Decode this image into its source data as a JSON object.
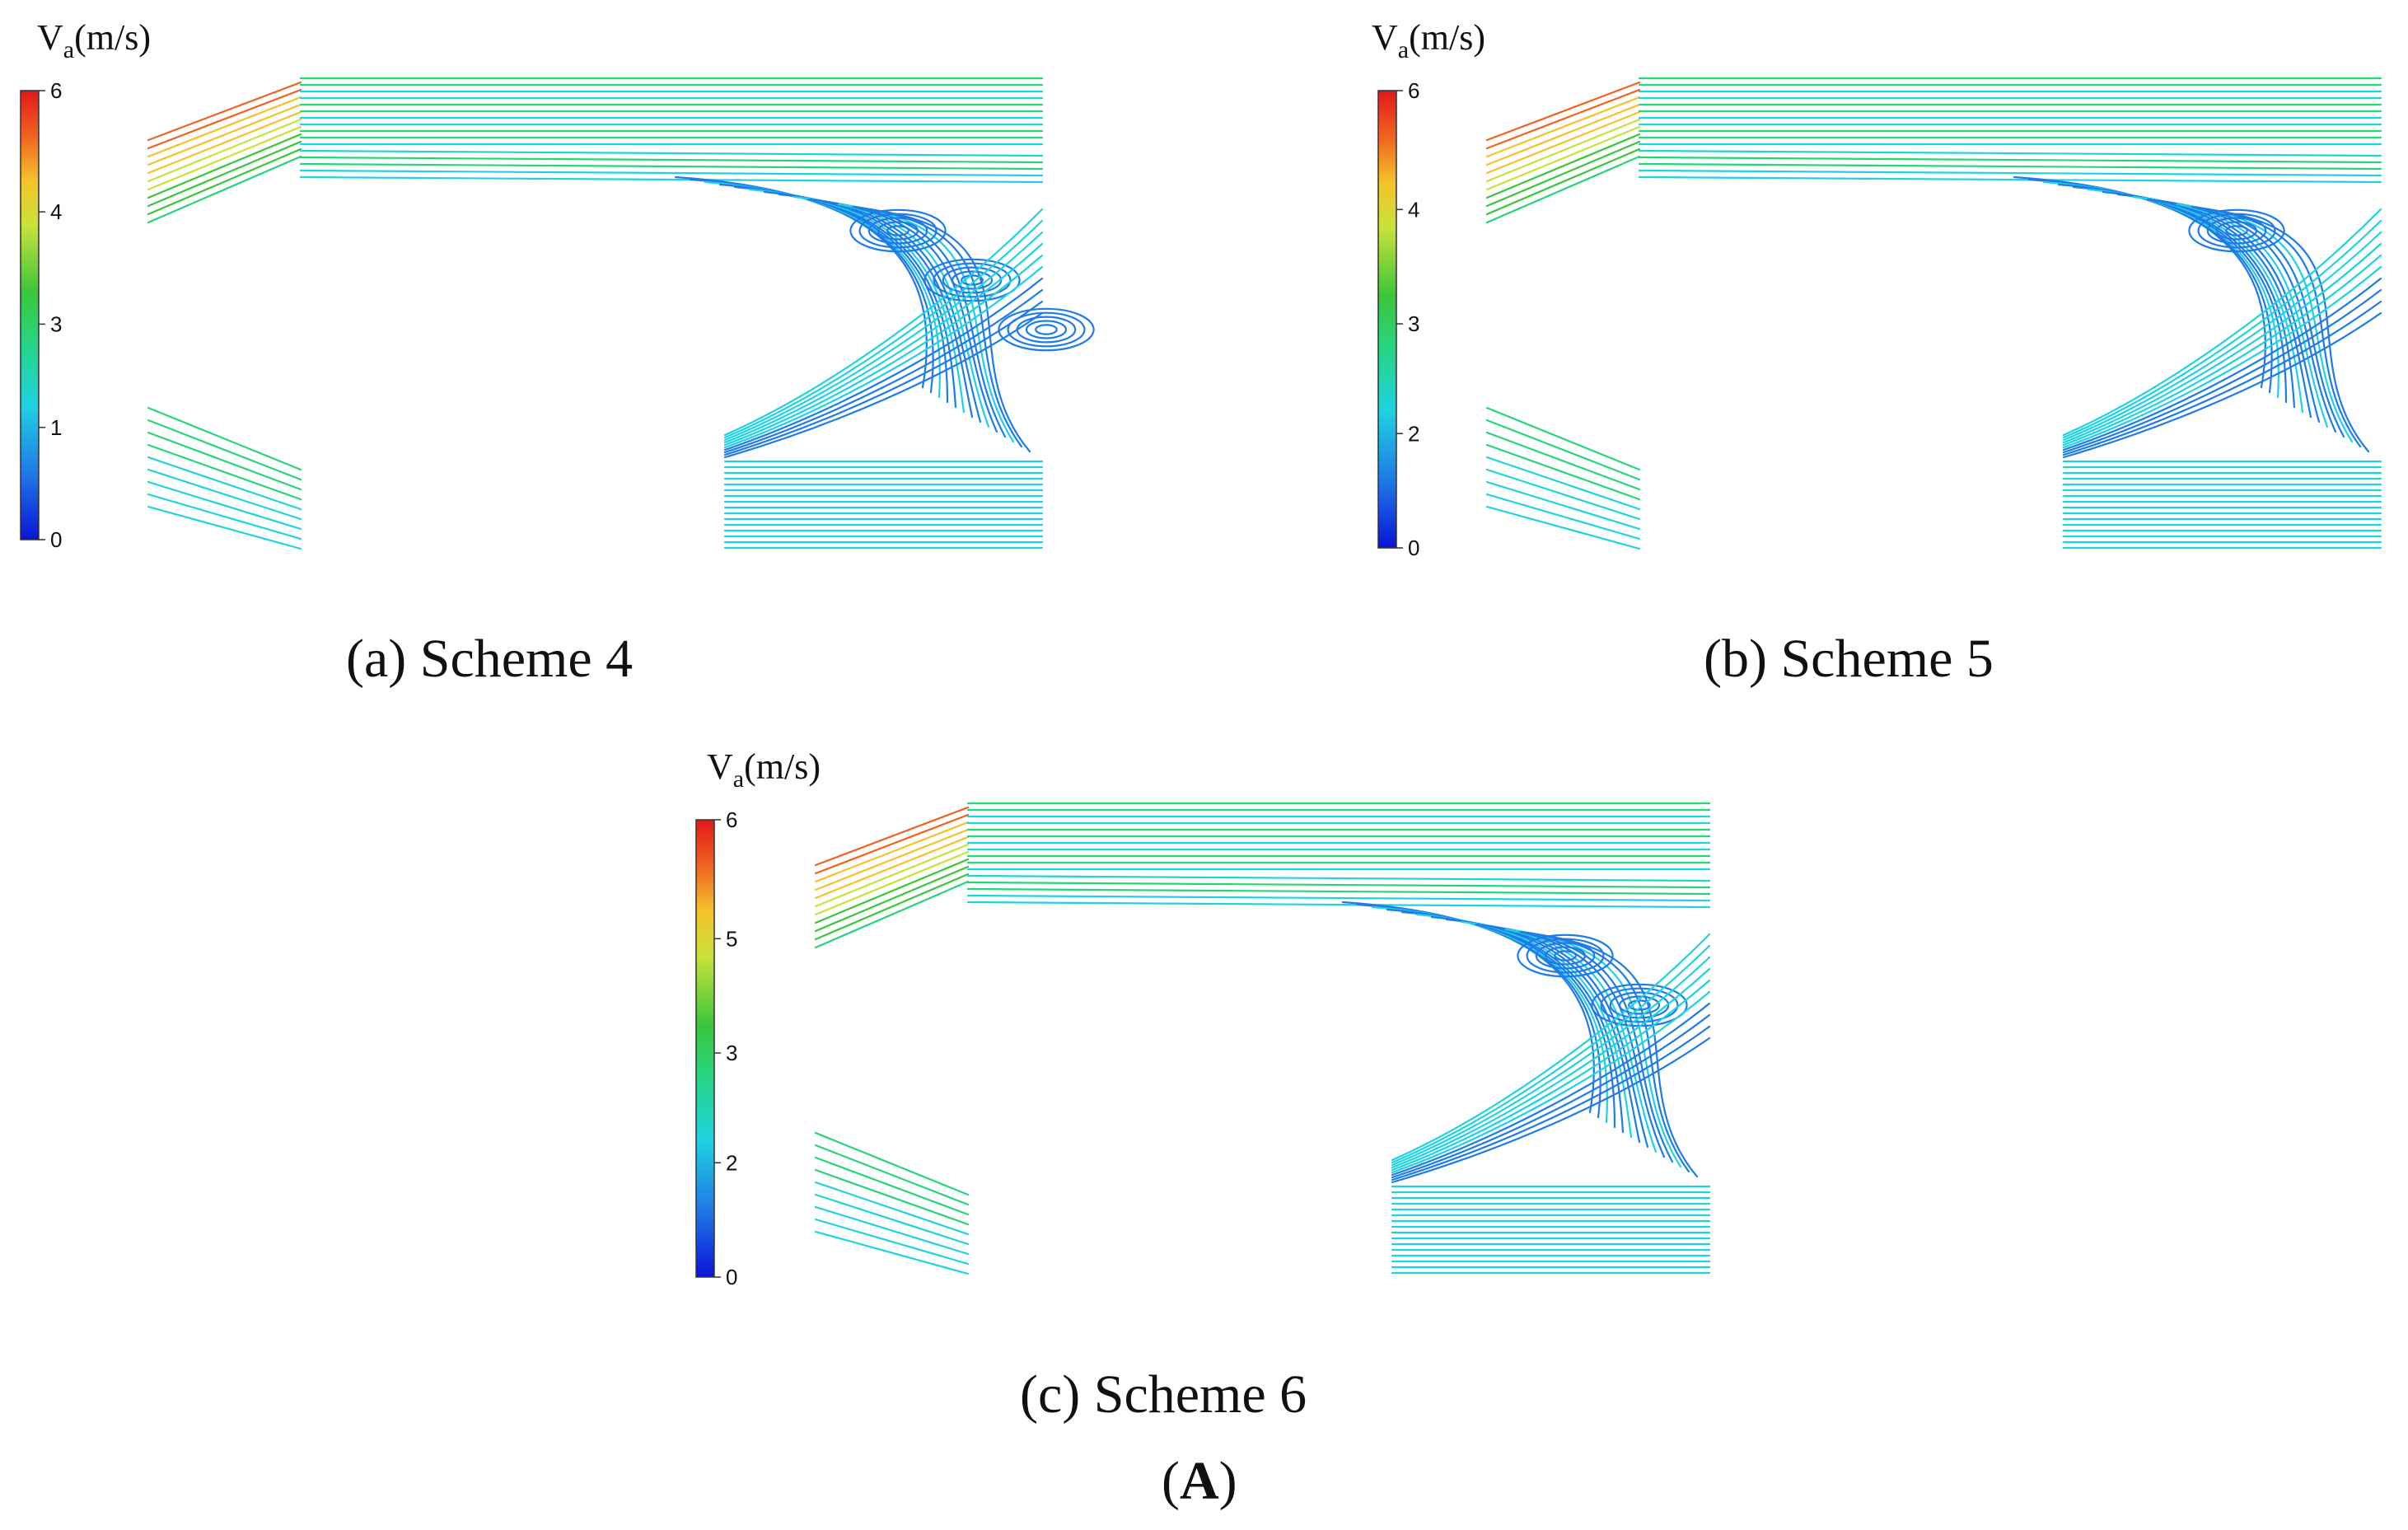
{
  "colorbar_title_base": "V",
  "colorbar_title_sub": "a",
  "colorbar_title_unit": "(m/s)",
  "colormap": [
    "#0a14d6",
    "#1f7be8",
    "#1fd2e0",
    "#28d47a",
    "#3ac63a",
    "#c8e23a",
    "#f5c22a",
    "#f0621f",
    "#e01a1a"
  ],
  "panels": [
    {
      "id": "a",
      "caption": "(a) Scheme 4",
      "colorbar_ticks": [
        "6",
        "4",
        "3",
        "1",
        "0"
      ],
      "vortex_count": 3
    },
    {
      "id": "b",
      "caption": "(b) Scheme 5",
      "colorbar_ticks": [
        "6",
        "4",
        "3",
        "2",
        "0"
      ],
      "vortex_count": 1
    },
    {
      "id": "c",
      "caption": "(c) Scheme 6",
      "colorbar_ticks": [
        "6",
        "5",
        "3",
        "2",
        "0"
      ],
      "vortex_count": 2
    }
  ],
  "figure_label_open": "(",
  "figure_label": "A",
  "figure_label_close": ")"
}
